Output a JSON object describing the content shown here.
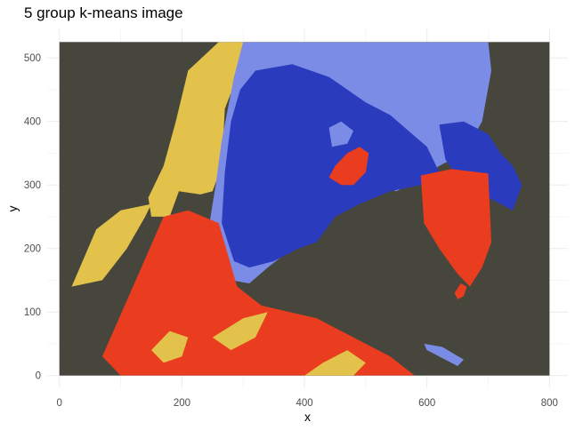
{
  "chart_data": {
    "type": "heatmap",
    "title": "5 group k-means image",
    "xlabel": "x",
    "ylabel": "y",
    "xlim": [
      -20,
      830
    ],
    "ylim": [
      -20,
      545
    ],
    "x_ticks": [
      0,
      200,
      400,
      600,
      800
    ],
    "y_ticks": [
      0,
      100,
      200,
      300,
      400,
      500
    ],
    "grid": true,
    "image_extent": {
      "x": [
        0,
        800
      ],
      "y": [
        0,
        525
      ]
    },
    "cluster_colors": [
      "#46463c",
      "#e2c24a",
      "#2a3bbd",
      "#7b8ce6",
      "#ea3d1f"
    ],
    "regions": [
      {
        "cluster": 1,
        "points": [
          [
            210,
            480
          ],
          [
            260,
            525
          ],
          [
            320,
            525
          ],
          [
            290,
            470
          ],
          [
            270,
            420
          ],
          [
            265,
            330
          ],
          [
            250,
            290
          ],
          [
            230,
            285
          ],
          [
            195,
            290
          ],
          [
            180,
            250
          ],
          [
            150,
            250
          ],
          [
            145,
            280
          ],
          [
            170,
            330
          ],
          [
            190,
            400
          ]
        ]
      },
      {
        "cluster": 3,
        "points": [
          [
            300,
            525
          ],
          [
            700,
            525
          ],
          [
            705,
            480
          ],
          [
            690,
            400
          ],
          [
            660,
            350
          ],
          [
            620,
            330
          ],
          [
            590,
            310
          ],
          [
            550,
            290
          ],
          [
            520,
            300
          ],
          [
            470,
            270
          ],
          [
            430,
            250
          ],
          [
            420,
            230
          ],
          [
            380,
            200
          ],
          [
            340,
            170
          ],
          [
            310,
            145
          ],
          [
            280,
            150
          ],
          [
            255,
            200
          ],
          [
            245,
            240
          ],
          [
            255,
            300
          ],
          [
            265,
            370
          ],
          [
            275,
            420
          ],
          [
            285,
            470
          ]
        ]
      },
      {
        "cluster": 2,
        "points": [
          [
            320,
            480
          ],
          [
            380,
            490
          ],
          [
            440,
            470
          ],
          [
            500,
            430
          ],
          [
            540,
            410
          ],
          [
            600,
            360
          ],
          [
            620,
            320
          ],
          [
            590,
            300
          ],
          [
            540,
            290
          ],
          [
            490,
            270
          ],
          [
            450,
            250
          ],
          [
            420,
            210
          ],
          [
            390,
            200
          ],
          [
            350,
            180
          ],
          [
            310,
            170
          ],
          [
            285,
            180
          ],
          [
            265,
            240
          ],
          [
            270,
            320
          ],
          [
            280,
            400
          ],
          [
            295,
            450
          ]
        ]
      },
      {
        "cluster": 3,
        "points": [
          [
            440,
            390
          ],
          [
            460,
            400
          ],
          [
            480,
            385
          ],
          [
            470,
            365
          ],
          [
            445,
            360
          ]
        ]
      },
      {
        "cluster": 2,
        "points": [
          [
            620,
            395
          ],
          [
            660,
            400
          ],
          [
            700,
            380
          ],
          [
            720,
            350
          ],
          [
            740,
            330
          ],
          [
            755,
            300
          ],
          [
            740,
            260
          ],
          [
            700,
            280
          ],
          [
            660,
            300
          ],
          [
            630,
            340
          ]
        ]
      },
      {
        "cluster": 4,
        "points": [
          [
            70,
            30
          ],
          [
            120,
            140
          ],
          [
            170,
            250
          ],
          [
            210,
            260
          ],
          [
            260,
            240
          ],
          [
            290,
            140
          ],
          [
            330,
            110
          ],
          [
            420,
            90
          ],
          [
            480,
            60
          ],
          [
            540,
            30
          ],
          [
            580,
            0
          ],
          [
            100,
            0
          ]
        ]
      },
      {
        "cluster": 1,
        "points": [
          [
            20,
            140
          ],
          [
            60,
            230
          ],
          [
            100,
            260
          ],
          [
            150,
            270
          ],
          [
            140,
            250
          ],
          [
            110,
            200
          ],
          [
            70,
            150
          ]
        ]
      },
      {
        "cluster": 1,
        "points": [
          [
            250,
            60
          ],
          [
            300,
            90
          ],
          [
            340,
            100
          ],
          [
            320,
            60
          ],
          [
            280,
            40
          ]
        ]
      },
      {
        "cluster": 1,
        "points": [
          [
            400,
            0
          ],
          [
            430,
            20
          ],
          [
            470,
            40
          ],
          [
            500,
            20
          ],
          [
            480,
            0
          ]
        ]
      },
      {
        "cluster": 1,
        "points": [
          [
            150,
            40
          ],
          [
            180,
            70
          ],
          [
            210,
            60
          ],
          [
            200,
            30
          ],
          [
            170,
            20
          ]
        ]
      },
      {
        "cluster": 4,
        "points": [
          [
            590,
            315
          ],
          [
            640,
            325
          ],
          [
            700,
            318
          ],
          [
            705,
            210
          ],
          [
            690,
            170
          ],
          [
            670,
            140
          ],
          [
            650,
            160
          ],
          [
            620,
            200
          ],
          [
            595,
            240
          ]
        ]
      },
      {
        "cluster": 3,
        "points": [
          [
            595,
            50
          ],
          [
            625,
            45
          ],
          [
            660,
            25
          ],
          [
            650,
            15
          ],
          [
            620,
            30
          ],
          [
            600,
            40
          ]
        ]
      },
      {
        "cluster": 4,
        "points": [
          [
            645,
            130
          ],
          [
            655,
            145
          ],
          [
            665,
            140
          ],
          [
            660,
            125
          ],
          [
            650,
            120
          ]
        ]
      },
      {
        "cluster": 4,
        "points": [
          [
            440,
            312
          ],
          [
            450,
            330
          ],
          [
            470,
            350
          ],
          [
            490,
            360
          ],
          [
            505,
            350
          ],
          [
            500,
            320
          ],
          [
            480,
            300
          ],
          [
            460,
            300
          ]
        ]
      }
    ]
  }
}
